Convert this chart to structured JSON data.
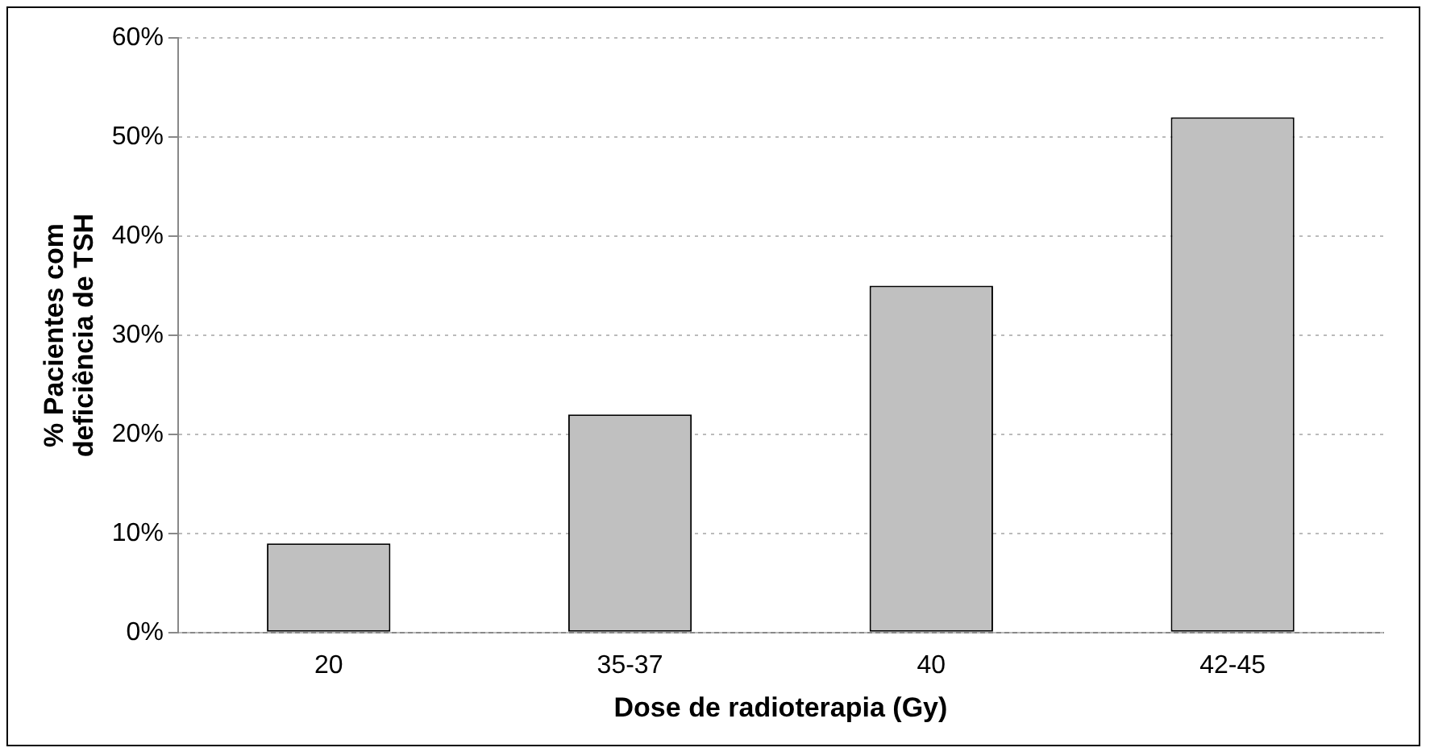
{
  "chart_data": {
    "type": "bar",
    "xlabel": "Dose de radioterapia (Gy)",
    "ylabel": "% Pacientes com\ndeficiência de TSH",
    "categories": [
      "20",
      "35-37",
      "40",
      "42-45"
    ],
    "values": [
      9,
      22,
      35,
      52
    ],
    "color": "#c0c0c0",
    "ylim": [
      0,
      60
    ],
    "yticks": [
      {
        "value": 0,
        "label": "0%"
      },
      {
        "value": 10,
        "label": "10%"
      },
      {
        "value": 20,
        "label": "20%"
      },
      {
        "value": 30,
        "label": "30%"
      },
      {
        "value": 40,
        "label": "40%"
      },
      {
        "value": 50,
        "label": "50%"
      },
      {
        "value": 60,
        "label": "60%"
      }
    ],
    "grid": "y",
    "legend": false
  }
}
